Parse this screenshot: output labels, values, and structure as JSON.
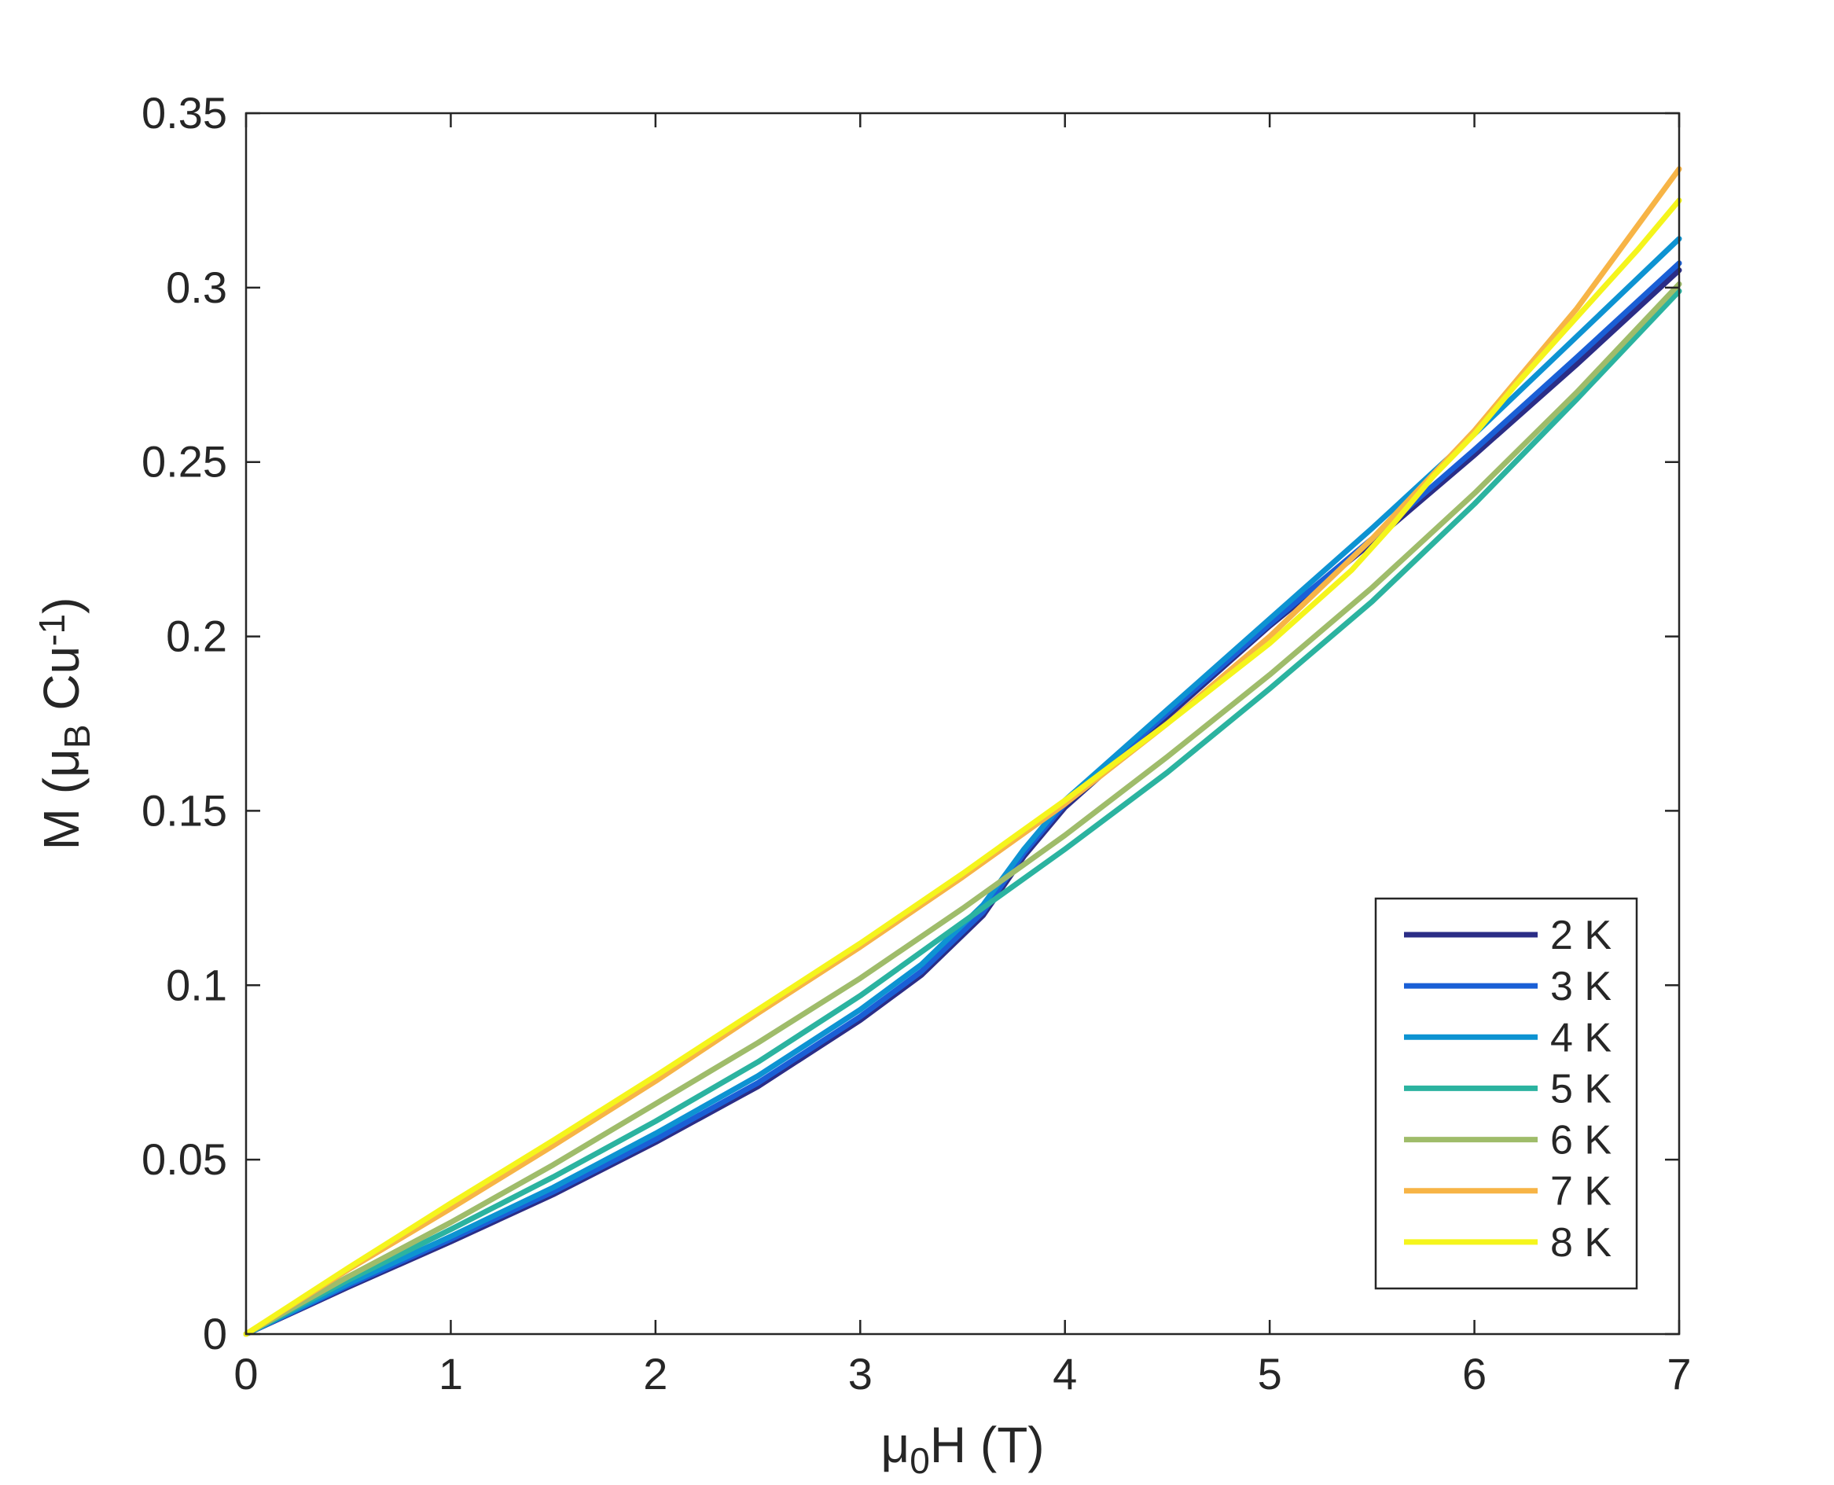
{
  "chart_data": {
    "type": "line",
    "title": "",
    "xlabel": {
      "main": "μ",
      "sub": "0",
      "rest": "H (T)"
    },
    "ylabel": {
      "pre": "M (μ",
      "sub": "B",
      "mid": " Cu",
      "sup": "-1",
      "post": ")"
    },
    "xlim": [
      0,
      7
    ],
    "ylim": [
      0,
      0.35
    ],
    "xticks": [
      0,
      1,
      2,
      3,
      4,
      5,
      6,
      7
    ],
    "xtick_labels": [
      "0",
      "1",
      "2",
      "3",
      "4",
      "5",
      "6",
      "7"
    ],
    "yticks": [
      0,
      0.05,
      0.1,
      0.15,
      0.2,
      0.25,
      0.3,
      0.35
    ],
    "ytick_labels": [
      "0",
      "0.05",
      "0.1",
      "0.15",
      "0.2",
      "0.25",
      "0.3",
      "0.35"
    ],
    "grid": false,
    "legend_position": "bottom-right",
    "series": [
      {
        "name": "2 K",
        "color": "#2b2d86",
        "x": [
          0,
          0.5,
          1,
          1.5,
          2,
          2.5,
          3,
          3.3,
          3.6,
          3.8,
          4,
          4.5,
          5,
          5.5,
          6,
          6.5,
          7
        ],
        "y": [
          0,
          0.0135,
          0.0265,
          0.04,
          0.055,
          0.071,
          0.09,
          0.103,
          0.12,
          0.137,
          0.151,
          0.177,
          0.203,
          0.227,
          0.252,
          0.278,
          0.305
        ]
      },
      {
        "name": "3 K",
        "color": "#1a5fd6",
        "x": [
          0,
          0.5,
          1,
          1.5,
          2,
          2.5,
          3,
          3.3,
          3.6,
          3.8,
          4,
          4.5,
          5,
          5.5,
          6,
          6.5,
          7
        ],
        "y": [
          0,
          0.014,
          0.0272,
          0.0408,
          0.0558,
          0.072,
          0.091,
          0.104,
          0.121,
          0.138,
          0.152,
          0.178,
          0.2035,
          0.228,
          0.2535,
          0.28,
          0.307
        ]
      },
      {
        "name": "4 K",
        "color": "#0d93d2",
        "x": [
          0,
          0.5,
          1,
          1.5,
          2,
          2.5,
          3,
          3.3,
          3.6,
          3.8,
          4,
          4.5,
          5,
          5.5,
          6,
          6.5,
          7
        ],
        "y": [
          0,
          0.0145,
          0.028,
          0.042,
          0.0575,
          0.074,
          0.093,
          0.106,
          0.123,
          0.139,
          0.153,
          0.179,
          0.205,
          0.231,
          0.258,
          0.286,
          0.314
        ]
      },
      {
        "name": "5 K",
        "color": "#2bb3a0",
        "x": [
          0,
          0.5,
          1,
          1.5,
          2,
          2.5,
          3,
          3.5,
          4,
          4.5,
          5,
          5.5,
          6,
          6.5,
          7
        ],
        "y": [
          0,
          0.0155,
          0.03,
          0.045,
          0.061,
          0.078,
          0.097,
          0.118,
          0.139,
          0.161,
          0.185,
          0.21,
          0.238,
          0.268,
          0.299
        ]
      },
      {
        "name": "6 K",
        "color": "#9fbc6a",
        "x": [
          0,
          0.5,
          1,
          1.5,
          2,
          2.5,
          3,
          3.5,
          4,
          4.5,
          5,
          5.5,
          6,
          6.5,
          7
        ],
        "y": [
          0,
          0.0165,
          0.032,
          0.0485,
          0.066,
          0.0835,
          0.102,
          0.122,
          0.143,
          0.1655,
          0.189,
          0.214,
          0.241,
          0.27,
          0.301
        ]
      },
      {
        "name": "7 K",
        "color": "#f7b446",
        "x": [
          0,
          0.5,
          1,
          1.5,
          2,
          2.5,
          3,
          3.5,
          4,
          4.5,
          5,
          5.5,
          6,
          6.5,
          7
        ],
        "y": [
          0,
          0.0185,
          0.036,
          0.054,
          0.0725,
          0.092,
          0.111,
          0.131,
          0.152,
          0.175,
          0.2,
          0.228,
          0.259,
          0.294,
          0.334
        ]
      },
      {
        "name": "8 K",
        "color": "#f5f51c",
        "x": [
          0,
          0.5,
          1,
          1.5,
          2,
          2.5,
          3,
          3.5,
          4,
          4.5,
          5,
          5.4,
          5.6,
          5.8,
          6,
          6.2,
          6.4,
          6.6,
          6.8,
          7
        ],
        "y": [
          0,
          0.019,
          0.0375,
          0.0555,
          0.074,
          0.093,
          0.112,
          0.132,
          0.153,
          0.175,
          0.198,
          0.219,
          0.232,
          0.246,
          0.258,
          0.272,
          0.285,
          0.298,
          0.311,
          0.325
        ]
      }
    ]
  }
}
